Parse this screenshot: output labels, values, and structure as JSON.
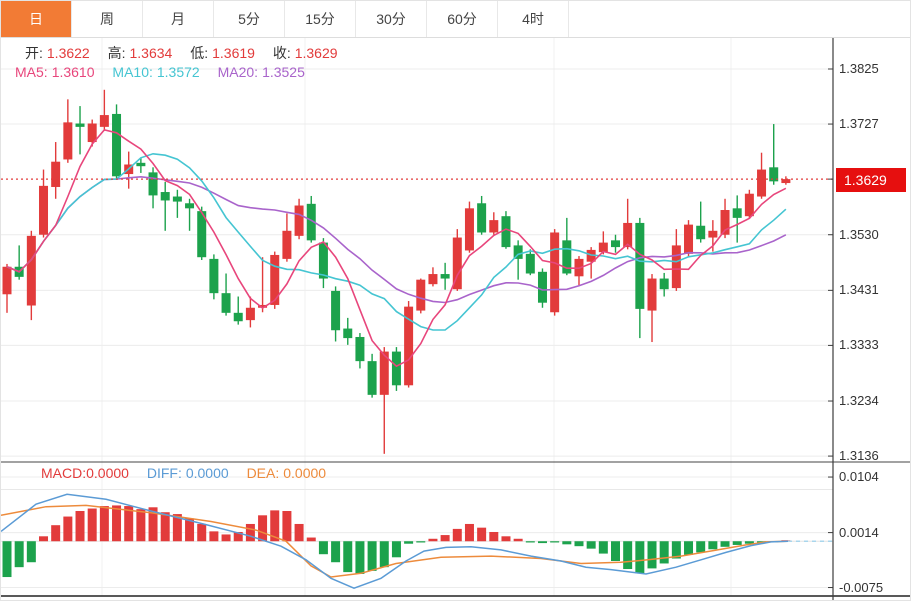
{
  "tabs": {
    "items": [
      {
        "name": "tab-day",
        "label": "日",
        "active": true
      },
      {
        "name": "tab-week",
        "label": "周",
        "active": false
      },
      {
        "name": "tab-month",
        "label": "月",
        "active": false
      },
      {
        "name": "tab-5min",
        "label": "5分",
        "active": false
      },
      {
        "name": "tab-15min",
        "label": "15分",
        "active": false
      },
      {
        "name": "tab-30min",
        "label": "30分",
        "active": false
      },
      {
        "name": "tab-60min",
        "label": "60分",
        "active": false
      },
      {
        "name": "tab-4hour",
        "label": "4时",
        "active": false
      }
    ]
  },
  "ohlc": {
    "open_label": "开:",
    "open": "1.3622",
    "high_label": "高:",
    "high": "1.3634",
    "low_label": "低:",
    "low": "1.3619",
    "close_label": "收:",
    "close": "1.3629"
  },
  "ma_legend": {
    "ma5_label": "MA5:",
    "ma5": "1.3610",
    "ma10_label": "MA10:",
    "ma10": "1.3572",
    "ma20_label": "MA20:",
    "ma20": "1.3525"
  },
  "macd_legend": {
    "macd_label": "MACD:",
    "macd": "0.0000",
    "diff_label": "DIFF:",
    "diff": "0.0000",
    "dea_label": "DEA:",
    "dea": "0.0000"
  },
  "price_axis": {
    "ticks": [
      "1.3825",
      "1.3727",
      "1.3629",
      "1.3530",
      "1.3431",
      "1.3333",
      "1.3234",
      "1.3136"
    ],
    "current_index": 2,
    "current": "1.3629"
  },
  "macd_axis": {
    "ticks": [
      "0.0104",
      "0.0014",
      "-0.0075"
    ]
  },
  "colors": {
    "up": "#e23b3b",
    "down": "#1ca24c",
    "ma5": "#e8467c",
    "ma10": "#45c5d2",
    "ma20": "#a964cb",
    "diff": "#5b9bd5",
    "dea": "#ed8b3c",
    "price_line": "#e23b3b",
    "tag_bg": "#e60f0f",
    "tab_active": "#f27b35",
    "grid": "#ececec",
    "vgrid": "#f0f0f0",
    "axis": "#3c3c3c",
    "zero_dash": "#a9d6ec"
  },
  "chart_data": [
    {
      "type": "candlestick",
      "period": "daily",
      "legend": {
        "ma5": 1.361,
        "ma10": 1.3572,
        "ma20": 1.3525
      },
      "last_ohlc": {
        "open": 1.3622,
        "high": 1.3634,
        "low": 1.3619,
        "close": 1.3629
      },
      "last_price": 1.3629,
      "y_ticks": [
        1.3825,
        1.3727,
        1.3629,
        1.353,
        1.3431,
        1.3333,
        1.3234,
        1.3136
      ],
      "ylim": [
        1.31,
        1.388
      ],
      "grid": true,
      "ma_periods": [
        5,
        10,
        20
      ],
      "candles": [
        [
          1.3424,
          1.3478,
          1.3391,
          1.3473
        ],
        [
          1.3473,
          1.3511,
          1.345,
          1.3455
        ],
        [
          1.3404,
          1.3537,
          1.3378,
          1.3528
        ],
        [
          1.353,
          1.3646,
          1.3525,
          1.3617
        ],
        [
          1.3615,
          1.3695,
          1.3594,
          1.366
        ],
        [
          1.3664,
          1.3771,
          1.3658,
          1.373
        ],
        [
          1.3728,
          1.3759,
          1.3673,
          1.3722
        ],
        [
          1.3695,
          1.3735,
          1.3687,
          1.3728
        ],
        [
          1.3722,
          1.3788,
          1.3715,
          1.3743
        ],
        [
          1.3745,
          1.3762,
          1.3629,
          1.3634
        ],
        [
          1.3638,
          1.3678,
          1.3612,
          1.3655
        ],
        [
          1.3658,
          1.3667,
          1.364,
          1.3652
        ],
        [
          1.3641,
          1.365,
          1.3577,
          1.36
        ],
        [
          1.3606,
          1.3624,
          1.3537,
          1.3591
        ],
        [
          1.3598,
          1.361,
          1.356,
          1.3589
        ],
        [
          1.3586,
          1.3594,
          1.3537,
          1.3577
        ],
        [
          1.3572,
          1.358,
          1.3485,
          1.349
        ],
        [
          1.3487,
          1.3495,
          1.3415,
          1.3426
        ],
        [
          1.3426,
          1.3461,
          1.3386,
          1.3391
        ],
        [
          1.3391,
          1.342,
          1.337,
          1.3376
        ],
        [
          1.3378,
          1.342,
          1.3365,
          1.34
        ],
        [
          1.34,
          1.349,
          1.3392,
          1.3405
        ],
        [
          1.3405,
          1.35,
          1.3398,
          1.3494
        ],
        [
          1.3487,
          1.3568,
          1.3482,
          1.3537
        ],
        [
          1.3528,
          1.3594,
          1.3522,
          1.3582
        ],
        [
          1.3585,
          1.3599,
          1.3516,
          1.352
        ],
        [
          1.3516,
          1.3524,
          1.3435,
          1.3452
        ],
        [
          1.343,
          1.3438,
          1.334,
          1.336
        ],
        [
          1.3363,
          1.3382,
          1.3334,
          1.3346
        ],
        [
          1.3348,
          1.3355,
          1.3292,
          1.3305
        ],
        [
          1.3305,
          1.3318,
          1.324,
          1.3245
        ],
        [
          1.3245,
          1.333,
          1.314,
          1.3322
        ],
        [
          1.3322,
          1.333,
          1.3252,
          1.3262
        ],
        [
          1.3262,
          1.3412,
          1.3258,
          1.3402
        ],
        [
          1.3395,
          1.3452,
          1.339,
          1.345
        ],
        [
          1.3442,
          1.3472,
          1.3438,
          1.346
        ],
        [
          1.346,
          1.348,
          1.3432,
          1.3452
        ],
        [
          1.3433,
          1.354,
          1.343,
          1.3525
        ],
        [
          1.3502,
          1.3589,
          1.3498,
          1.3577
        ],
        [
          1.3586,
          1.3599,
          1.353,
          1.3534
        ],
        [
          1.3534,
          1.357,
          1.353,
          1.3556
        ],
        [
          1.3563,
          1.3572,
          1.3505,
          1.3508
        ],
        [
          1.3511,
          1.352,
          1.345,
          1.3487
        ],
        [
          1.3496,
          1.3504,
          1.3458,
          1.3461
        ],
        [
          1.3464,
          1.347,
          1.34,
          1.3409
        ],
        [
          1.3392,
          1.354,
          1.3386,
          1.3534
        ],
        [
          1.352,
          1.356,
          1.3458,
          1.3461
        ],
        [
          1.3456,
          1.3492,
          1.344,
          1.3487
        ],
        [
          1.3482,
          1.3508,
          1.3452,
          1.3503
        ],
        [
          1.3499,
          1.3536,
          1.3495,
          1.3516
        ],
        [
          1.352,
          1.353,
          1.3498,
          1.3508
        ],
        [
          1.3508,
          1.3594,
          1.3504,
          1.3551
        ],
        [
          1.3551,
          1.356,
          1.3346,
          1.3398
        ],
        [
          1.3395,
          1.346,
          1.3339,
          1.3452
        ],
        [
          1.3452,
          1.3462,
          1.342,
          1.3433
        ],
        [
          1.3435,
          1.354,
          1.343,
          1.3511
        ],
        [
          1.3496,
          1.3556,
          1.349,
          1.3548
        ],
        [
          1.3546,
          1.3589,
          1.3516,
          1.3522
        ],
        [
          1.3525,
          1.3556,
          1.35,
          1.3537
        ],
        [
          1.353,
          1.3594,
          1.3524,
          1.3574
        ],
        [
          1.3577,
          1.36,
          1.3516,
          1.356
        ],
        [
          1.3563,
          1.361,
          1.3558,
          1.3603
        ],
        [
          1.3598,
          1.3676,
          1.3594,
          1.3646
        ],
        [
          1.365,
          1.3727,
          1.3619,
          1.3625
        ],
        [
          1.3622,
          1.3634,
          1.3619,
          1.3629
        ]
      ]
    },
    {
      "type": "bar",
      "name": "MACD",
      "y_ticks": [
        0.0104,
        0.0014,
        -0.0075
      ],
      "last_values": {
        "macd": 0.0,
        "diff": 0.0,
        "dea": 0.0
      },
      "histogram": [
        -0.0058,
        -0.0042,
        -0.0034,
        0.0008,
        0.0026,
        0.004,
        0.0049,
        0.0053,
        0.0057,
        0.0058,
        0.0057,
        0.0052,
        0.0055,
        0.0047,
        0.0044,
        0.0037,
        0.0028,
        0.0016,
        0.0011,
        0.0015,
        0.0028,
        0.0042,
        0.005,
        0.0049,
        0.0028,
        0.0006,
        -0.0021,
        -0.0034,
        -0.005,
        -0.0053,
        -0.0048,
        -0.0042,
        -0.0026,
        -0.0004,
        -0.0002,
        0.0004,
        0.001,
        0.002,
        0.0028,
        0.0022,
        0.0015,
        0.0008,
        0.0004,
        -0.0002,
        -0.0003,
        -0.0002,
        -0.0005,
        -0.0008,
        -0.0012,
        -0.002,
        -0.0032,
        -0.0045,
        -0.0052,
        -0.0044,
        -0.0036,
        -0.0028,
        -0.0022,
        -0.0018,
        -0.0013,
        -0.0009,
        -0.0006,
        -0.0004,
        -0.0002,
        -0.0001,
        0.0
      ],
      "diff_points": [
        [
          0,
          0.0016
        ],
        [
          35,
          0.006
        ],
        [
          66,
          0.0076
        ],
        [
          105,
          0.0068
        ],
        [
          150,
          0.0049
        ],
        [
          205,
          0.0027
        ],
        [
          250,
          0.0008
        ],
        [
          280,
          -0.0008
        ],
        [
          305,
          -0.003
        ],
        [
          330,
          -0.006
        ],
        [
          353,
          -0.0076
        ],
        [
          380,
          -0.006
        ],
        [
          405,
          -0.0032
        ],
        [
          423,
          -0.0016
        ],
        [
          445,
          -0.001
        ],
        [
          470,
          -0.0009
        ],
        [
          500,
          -0.0014
        ],
        [
          530,
          -0.0024
        ],
        [
          560,
          -0.0032
        ],
        [
          585,
          -0.0042
        ],
        [
          610,
          -0.0046
        ],
        [
          645,
          -0.0053
        ],
        [
          675,
          -0.0042
        ],
        [
          700,
          -0.003
        ],
        [
          725,
          -0.0018
        ],
        [
          750,
          -0.0007
        ],
        [
          770,
          -0.0001
        ],
        [
          787,
          0.0
        ]
      ],
      "dea_points": [
        [
          0,
          0.0042
        ],
        [
          45,
          0.0056
        ],
        [
          85,
          0.0058
        ],
        [
          150,
          0.0046
        ],
        [
          210,
          0.0032
        ],
        [
          255,
          0.0018
        ],
        [
          285,
          0.0
        ],
        [
          310,
          -0.004
        ],
        [
          330,
          -0.0058
        ],
        [
          360,
          -0.0052
        ],
        [
          395,
          -0.0036
        ],
        [
          440,
          -0.0026
        ],
        [
          490,
          -0.0024
        ],
        [
          540,
          -0.0028
        ],
        [
          580,
          -0.0036
        ],
        [
          620,
          -0.0034
        ],
        [
          647,
          -0.003
        ],
        [
          680,
          -0.0024
        ],
        [
          713,
          -0.0015
        ],
        [
          745,
          -0.0006
        ],
        [
          765,
          -0.0001
        ],
        [
          787,
          0.0
        ]
      ],
      "zero_dash_from_x": 787
    }
  ]
}
